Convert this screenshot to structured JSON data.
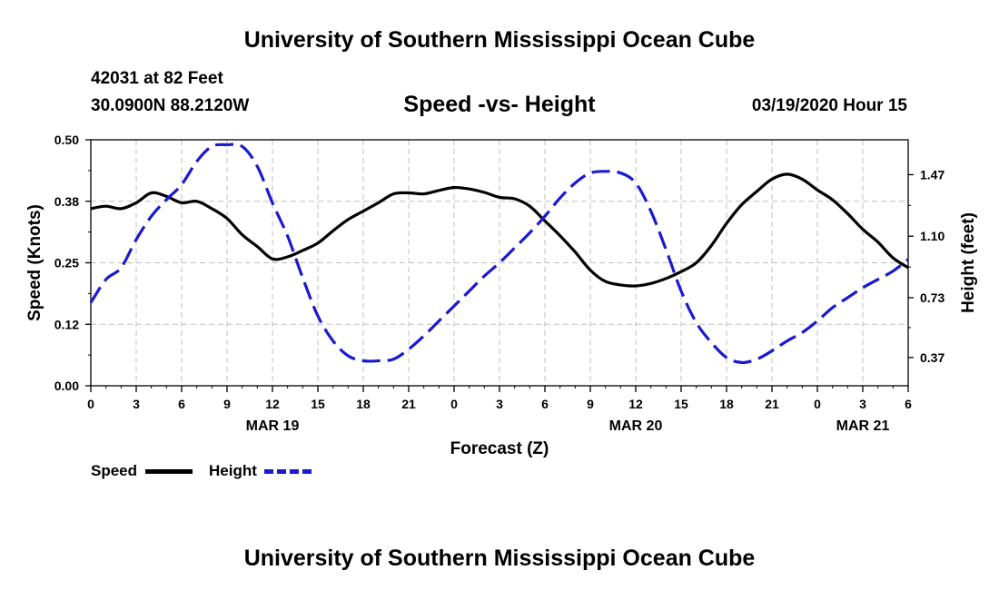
{
  "page": {
    "top_title": "University of Southern Mississippi Ocean Cube",
    "bottom_title": "University of Southern Mississippi Ocean Cube",
    "station": "42031 at 82 Feet",
    "coords": "30.0900N 88.2120W",
    "date": "03/19/2020 Hour 15"
  },
  "colors": {
    "speed": "#000000",
    "height": "#1a1ad0",
    "grid": "#bfbfbf"
  },
  "chart_data": {
    "type": "line",
    "title": "Speed -vs- Height",
    "xlabel": "Forecast (Z)",
    "ylabel": "Speed (Knots)",
    "y2label": "Height (feet)",
    "xlim": [
      0,
      54
    ],
    "ylim": [
      0,
      0.5
    ],
    "y2lim": [
      0.2,
      1.68
    ],
    "x_ticks": [
      0,
      3,
      6,
      9,
      12,
      15,
      18,
      21,
      24,
      27,
      30,
      33,
      36,
      39,
      42,
      45,
      48,
      51,
      54
    ],
    "x_tick_labels": [
      "0",
      "3",
      "6",
      "9",
      "12",
      "15",
      "18",
      "21",
      "0",
      "3",
      "6",
      "9",
      "12",
      "15",
      "18",
      "21",
      "0",
      "3",
      "6"
    ],
    "y_ticks": [
      0,
      0.125,
      0.25,
      0.375,
      0.5
    ],
    "y_tick_labels": [
      "0.00",
      "0.12",
      "0.25",
      "0.38",
      "0.50"
    ],
    "y2_ticks": [
      0.37,
      0.73,
      1.1,
      1.47
    ],
    "y2_tick_labels": [
      "0.37",
      "0.73",
      "1.10",
      "1.47"
    ],
    "day_labels": [
      {
        "x": 12,
        "label": "MAR 19"
      },
      {
        "x": 36,
        "label": "MAR 20"
      },
      {
        "x": 51,
        "label": "MAR 21"
      }
    ],
    "series": [
      {
        "name": "Speed",
        "axis": "left",
        "style": "solid",
        "x": [
          0,
          1,
          2,
          3,
          4,
          5,
          6,
          7,
          8,
          9,
          10,
          11,
          12,
          13,
          14,
          15,
          16,
          17,
          18,
          19,
          20,
          21,
          22,
          23,
          24,
          25,
          26,
          27,
          28,
          29,
          30,
          31,
          32,
          33,
          34,
          35,
          36,
          37,
          38,
          39,
          40,
          41,
          42,
          43,
          44,
          45,
          46,
          47,
          48,
          49,
          50,
          51,
          52,
          53,
          54
        ],
        "values": [
          0.36,
          0.365,
          0.36,
          0.372,
          0.392,
          0.385,
          0.372,
          0.375,
          0.36,
          0.34,
          0.307,
          0.283,
          0.258,
          0.262,
          0.275,
          0.29,
          0.315,
          0.338,
          0.355,
          0.372,
          0.39,
          0.392,
          0.39,
          0.397,
          0.403,
          0.4,
          0.393,
          0.383,
          0.38,
          0.365,
          0.335,
          0.305,
          0.272,
          0.235,
          0.212,
          0.205,
          0.203,
          0.208,
          0.218,
          0.232,
          0.25,
          0.285,
          0.33,
          0.368,
          0.395,
          0.42,
          0.43,
          0.42,
          0.398,
          0.378,
          0.35,
          0.318,
          0.292,
          0.26,
          0.24
        ]
      },
      {
        "name": "Height",
        "axis": "right",
        "style": "dashed",
        "x": [
          0,
          1,
          2,
          3,
          4,
          5,
          6,
          7,
          8,
          9,
          10,
          11,
          12,
          13,
          14,
          15,
          16,
          17,
          18,
          19,
          20,
          21,
          22,
          23,
          24,
          25,
          26,
          27,
          28,
          29,
          30,
          31,
          32,
          33,
          34,
          35,
          36,
          37,
          38,
          39,
          40,
          41,
          42,
          43,
          44,
          45,
          46,
          47,
          48,
          49,
          50,
          51,
          52,
          53,
          54
        ],
        "values": [
          0.7,
          0.84,
          0.91,
          1.08,
          1.22,
          1.32,
          1.41,
          1.55,
          1.64,
          1.65,
          1.64,
          1.52,
          1.3,
          1.1,
          0.85,
          0.62,
          0.47,
          0.38,
          0.35,
          0.35,
          0.36,
          0.42,
          0.5,
          0.59,
          0.68,
          0.77,
          0.86,
          0.94,
          1.03,
          1.12,
          1.22,
          1.33,
          1.42,
          1.48,
          1.49,
          1.48,
          1.42,
          1.25,
          1.02,
          0.77,
          0.58,
          0.46,
          0.37,
          0.34,
          0.36,
          0.41,
          0.47,
          0.52,
          0.59,
          0.67,
          0.73,
          0.79,
          0.84,
          0.89,
          0.96
        ]
      }
    ],
    "legend": [
      {
        "label": "Speed",
        "style": "solid"
      },
      {
        "label": "Height",
        "style": "dashed"
      }
    ]
  }
}
